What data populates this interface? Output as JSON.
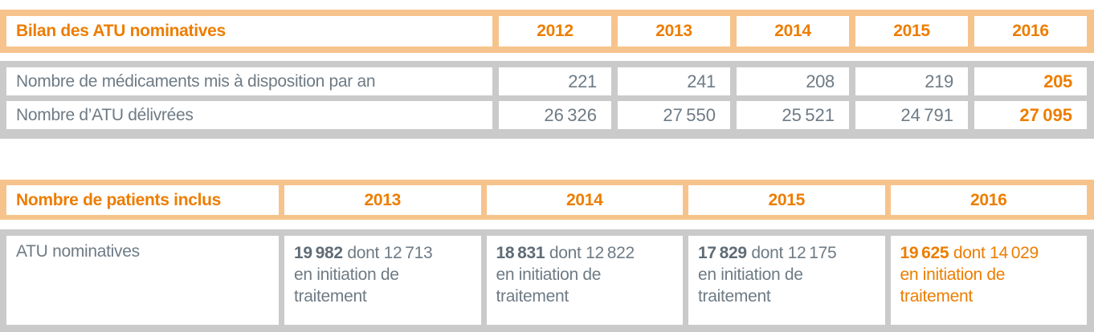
{
  "colors": {
    "accent_orange": "#ED7D00",
    "header_band": "#F7C38C",
    "body_band": "#CACACB",
    "text_gray": "#6E7B85",
    "text_gray_bold": "#5F6C76"
  },
  "table1": {
    "title": "Bilan des ATU nominatives",
    "years": [
      "2012",
      "2013",
      "2014",
      "2015",
      "2016"
    ],
    "rows": [
      {
        "label": "Nombre de médicaments mis à disposition par an",
        "values": [
          "221",
          "241",
          "208",
          "219",
          "205"
        ]
      },
      {
        "label": "Nombre d’ATU délivrées",
        "values": [
          "26 326",
          "27 550",
          "25 521",
          "24 791",
          "27 095"
        ]
      }
    ]
  },
  "table2": {
    "title": "Nombre de patients inclus",
    "years": [
      "2013",
      "2014",
      "2015",
      "2016"
    ],
    "rows": [
      {
        "label": "ATU nominatives",
        "cells": [
          {
            "total": "19 982",
            "detail": "dont 12 713",
            "suffix": "en initiation de traitement"
          },
          {
            "total": "18 831",
            "detail": "dont 12 822",
            "suffix": "en initiation de traitement"
          },
          {
            "total": "17 829",
            "detail": "dont 12 175",
            "suffix": "en initiation de traitement"
          },
          {
            "total": "19 625",
            "detail": "dont 14 029",
            "suffix": "en initiation de traitement"
          }
        ]
      }
    ]
  }
}
